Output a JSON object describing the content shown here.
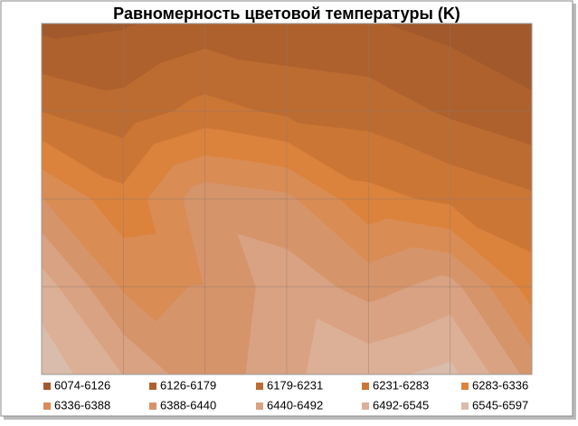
{
  "chart_data": {
    "type": "contour",
    "title": "Равномерность цветовой температуры (K)",
    "z": [
      [
        6110,
        6120,
        6150,
        6140,
        6130,
        6110,
        6080
      ],
      [
        6230,
        6200,
        6250,
        6220,
        6210,
        6170,
        6140
      ],
      [
        6390,
        6300,
        6420,
        6400,
        6300,
        6270,
        6240
      ],
      [
        6520,
        6380,
        6390,
        6470,
        6420,
        6460,
        6310
      ],
      [
        6580,
        6490,
        6400,
        6480,
        6530,
        6560,
        6420
      ]
    ],
    "levels": [
      6074,
      6126,
      6179,
      6231,
      6283,
      6336,
      6388,
      6440,
      6492,
      6545,
      6597
    ],
    "series": [
      {
        "name": "6074-6126",
        "color": "#a2592b"
      },
      {
        "name": "6126-6179",
        "color": "#ae612d"
      },
      {
        "name": "6179-6231",
        "color": "#bd6c31"
      },
      {
        "name": "6231-6283",
        "color": "#cc7636"
      },
      {
        "name": "6283-6336",
        "color": "#db823c"
      },
      {
        "name": "6336-6388",
        "color": "#d98c54"
      },
      {
        "name": "6388-6440",
        "color": "#d6946a"
      },
      {
        "name": "6440-6492",
        "color": "#d9a283"
      },
      {
        "name": "6492-6545",
        "color": "#dcb097"
      },
      {
        "name": "6545-6597",
        "color": "#d9bcab"
      }
    ],
    "grid": true
  }
}
